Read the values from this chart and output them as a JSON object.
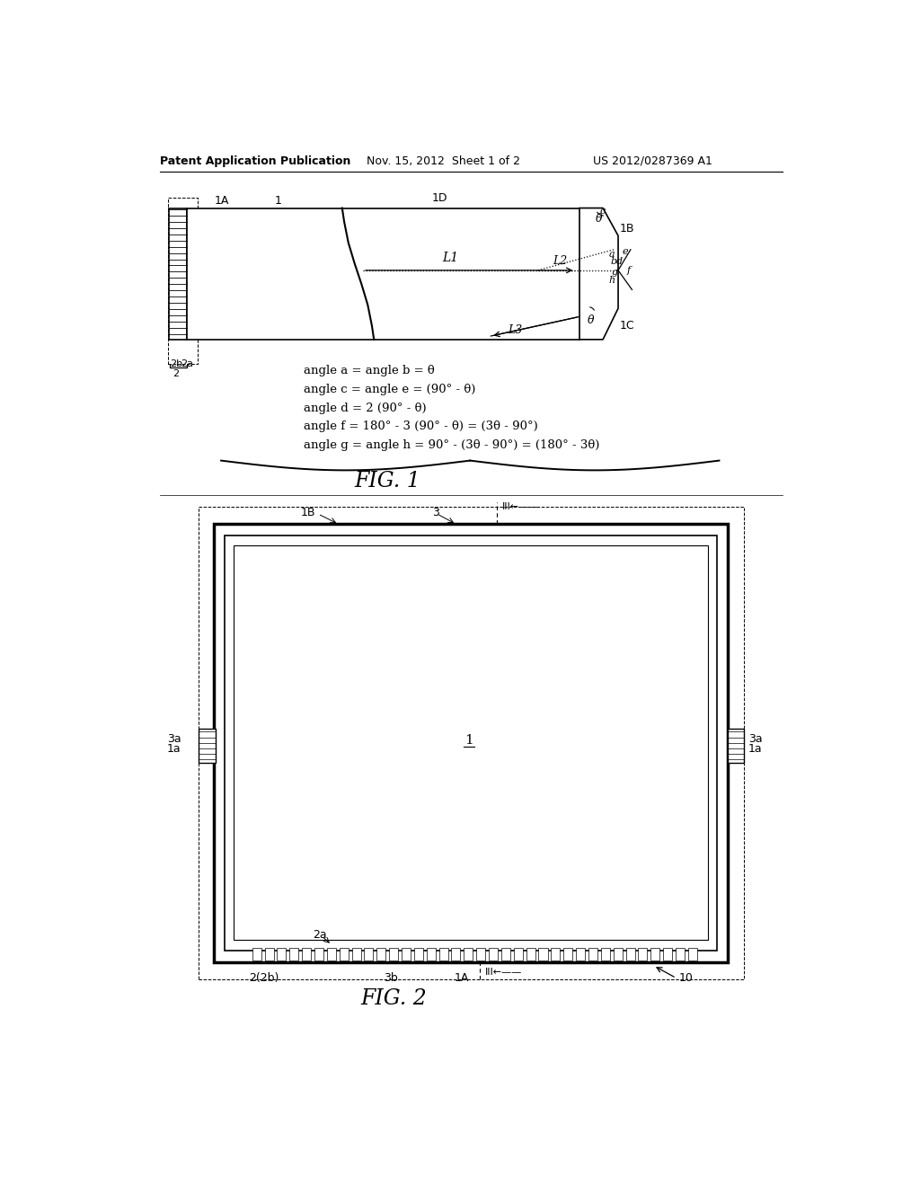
{
  "bg_color": "#ffffff",
  "header_text_left": "Patent Application Publication",
  "header_text_mid": "Nov. 15, 2012  Sheet 1 of 2",
  "header_text_right": "US 2012/0287369 A1",
  "fig1_label": "FIG. 1",
  "fig2_label": "FIG. 2",
  "equations": [
    "angle a = angle b = θ",
    "angle c = angle e = (90° - θ)",
    "angle d = 2 (90° - θ)",
    "angle f = 180° - 3 (90° - θ) = (3θ - 90°)",
    "angle g = angle h = 90° - (3θ - 90°) = (180° - 3θ)"
  ]
}
